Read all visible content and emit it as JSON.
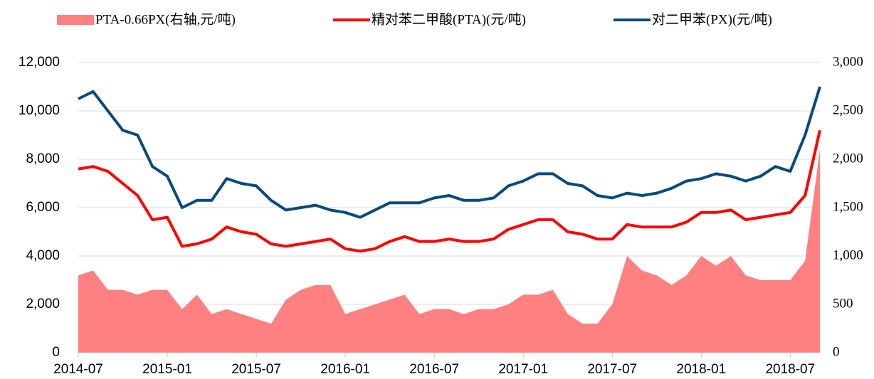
{
  "chart_data": {
    "type": "line",
    "categories": [
      "2014-07",
      null,
      null,
      null,
      null,
      null,
      "2015-01",
      null,
      null,
      null,
      null,
      null,
      "2015-07",
      null,
      null,
      null,
      null,
      null,
      "2016-01",
      null,
      null,
      null,
      null,
      null,
      "2016-07",
      null,
      null,
      null,
      null,
      null,
      "2017-01",
      null,
      null,
      null,
      null,
      null,
      "2017-07",
      null,
      null,
      null,
      null,
      null,
      "2018-01",
      null,
      null,
      null,
      null,
      null,
      "2018-07",
      null,
      null
    ],
    "series": [
      {
        "name": "PTA-0.66PX(右轴,元/吨)",
        "color": "#ff8080",
        "axis": "y2",
        "kind": "area",
        "values": [
          800,
          850,
          650,
          650,
          600,
          650,
          650,
          450,
          600,
          400,
          450,
          400,
          350,
          300,
          550,
          650,
          700,
          700,
          400,
          450,
          500,
          550,
          600,
          400,
          450,
          450,
          400,
          450,
          450,
          500,
          600,
          600,
          650,
          400,
          300,
          300,
          500,
          1000,
          850,
          800,
          700,
          800,
          1000,
          900,
          1000,
          800,
          750,
          750,
          750,
          950,
          2100
        ]
      },
      {
        "name": "精对苯二甲酸(PTA)(元/吨)",
        "color": "#ff0000",
        "values": [
          7600,
          7700,
          7500,
          7000,
          6500,
          5500,
          5600,
          4400,
          4500,
          4700,
          5200,
          5000,
          4900,
          4500,
          4400,
          4500,
          4600,
          4700,
          4300,
          4200,
          4300,
          4600,
          4800,
          4600,
          4600,
          4700,
          4600,
          4600,
          4700,
          5100,
          5300,
          5500,
          5500,
          5000,
          4900,
          4700,
          4700,
          5300,
          5200,
          5200,
          5200,
          5400,
          5800,
          5800,
          5900,
          5500,
          5600,
          5700,
          5800,
          6500,
          9200
        ]
      },
      {
        "name": "对二甲苯(PX)(元/吨)",
        "color": "#0b4a7a",
        "values": [
          10500,
          10800,
          10000,
          9200,
          9000,
          7700,
          7300,
          6000,
          6300,
          6300,
          7200,
          7000,
          6900,
          6300,
          5900,
          6000,
          6100,
          5900,
          5800,
          5600,
          5900,
          6200,
          6200,
          6200,
          6400,
          6500,
          6300,
          6300,
          6400,
          6900,
          7100,
          7400,
          7400,
          7000,
          6900,
          6500,
          6400,
          6600,
          6500,
          6600,
          6800,
          7100,
          7200,
          7400,
          7300,
          7100,
          7300,
          7700,
          7500,
          9000,
          11000
        ]
      }
    ],
    "ylim": [
      0,
      12000
    ],
    "yticks": [
      0,
      {
        "value": 2000,
        "label": "2,000"
      },
      {
        "value": 4000,
        "label": "4,000"
      },
      {
        "value": 6000,
        "label": "6,000"
      },
      {
        "value": 8000,
        "label": "8,000"
      },
      {
        "value": 10000,
        "label": "10,000"
      },
      {
        "value": 12000,
        "label": "12,000"
      }
    ],
    "y2lim": [
      0,
      3000
    ],
    "y2ticks": [
      0,
      500,
      {
        "value": 1000,
        "label": "1,000"
      },
      {
        "value": 1500,
        "label": "1,500"
      },
      {
        "value": 2000,
        "label": "2,000"
      },
      {
        "value": 2500,
        "label": "2,500"
      },
      {
        "value": 3000,
        "label": "3,000"
      }
    ],
    "grid": true,
    "legend": "top"
  }
}
